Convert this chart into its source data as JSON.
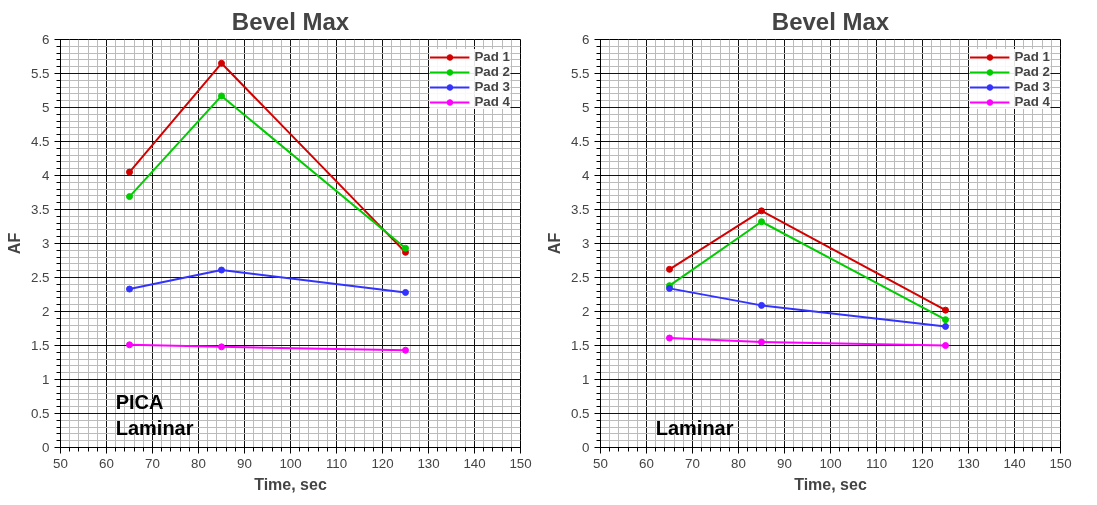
{
  "chart_data": [
    {
      "type": "line",
      "title": "Bevel Max",
      "xlabel": "Time, sec",
      "ylabel": "AF",
      "x": [
        65,
        85,
        125
      ],
      "xlim": [
        50,
        150
      ],
      "xticks": [
        50,
        60,
        70,
        80,
        90,
        100,
        110,
        120,
        130,
        140,
        150
      ],
      "ylim": [
        0,
        6
      ],
      "yticks": [
        0,
        0.5,
        1,
        1.5,
        2,
        2.5,
        3,
        3.5,
        4,
        4.5,
        5,
        5.5,
        6
      ],
      "grid": true,
      "legend": "top right",
      "marker": "circle",
      "line_style": "solid",
      "annotations": [
        "PICA\nLaminar"
      ],
      "series": [
        {
          "name": "Pad 1",
          "color": "#d40000",
          "values": [
            4.05,
            5.65,
            2.87
          ]
        },
        {
          "name": "Pad 2",
          "color": "#00cc00",
          "values": [
            3.69,
            5.17,
            2.93
          ]
        },
        {
          "name": "Pad 3",
          "color": "#3333ff",
          "values": [
            2.33,
            2.61,
            2.28
          ]
        },
        {
          "name": "Pad 4",
          "color": "#ff00ff",
          "values": [
            1.51,
            1.48,
            1.43
          ]
        }
      ]
    },
    {
      "type": "line",
      "title": "Bevel Max",
      "xlabel": "Time, sec",
      "ylabel": "AF",
      "x": [
        65,
        85,
        125
      ],
      "xlim": [
        50,
        150
      ],
      "xticks": [
        50,
        60,
        70,
        80,
        90,
        100,
        110,
        120,
        130,
        140,
        150
      ],
      "ylim": [
        0,
        6
      ],
      "yticks": [
        0,
        0.5,
        1,
        1.5,
        2,
        2.5,
        3,
        3.5,
        4,
        4.5,
        5,
        5.5,
        6
      ],
      "grid": true,
      "legend": "top right",
      "marker": "circle",
      "line_style": "solid",
      "annotations": [
        "Laminar"
      ],
      "series": [
        {
          "name": "Pad 1",
          "color": "#d40000",
          "values": [
            2.62,
            3.48,
            2.02
          ]
        },
        {
          "name": "Pad 2",
          "color": "#00cc00",
          "values": [
            2.38,
            3.32,
            1.88
          ]
        },
        {
          "name": "Pad 3",
          "color": "#3333ff",
          "values": [
            2.34,
            2.09,
            1.78
          ]
        },
        {
          "name": "Pad 4",
          "color": "#ff00ff",
          "values": [
            1.61,
            1.55,
            1.5
          ]
        }
      ]
    }
  ]
}
